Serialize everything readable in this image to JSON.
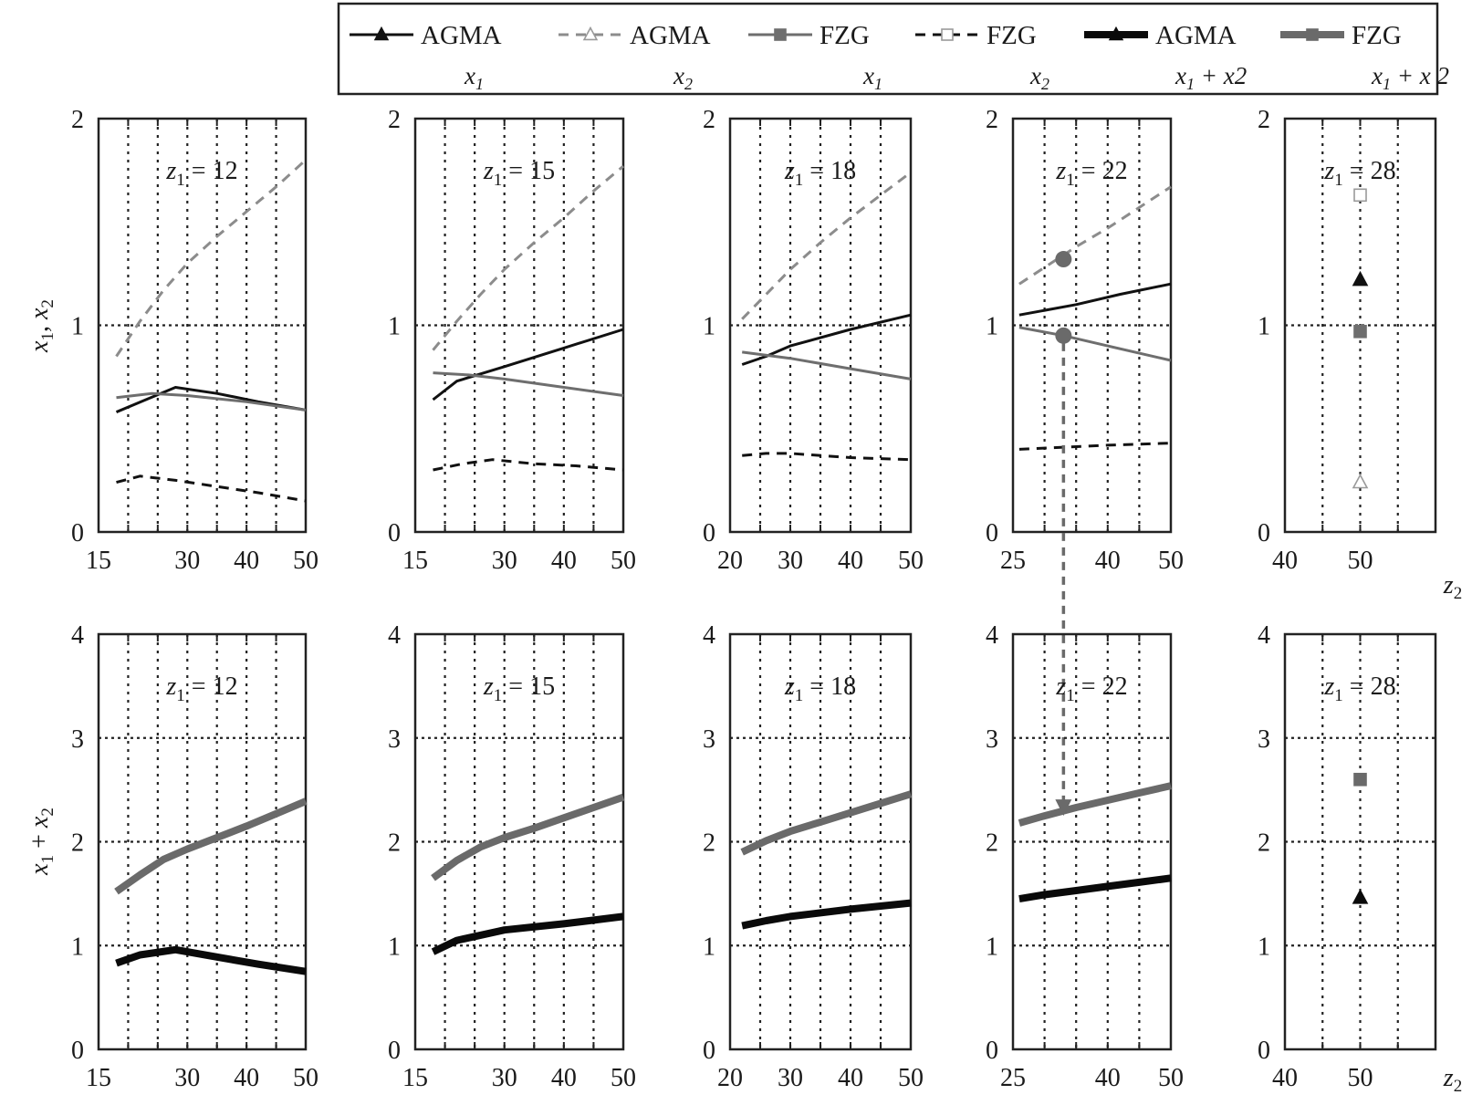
{
  "legend": {
    "entries": [
      {
        "name": "AGMA",
        "sub": "x",
        "subidx": "1",
        "subrest": "",
        "style": "thin-solid-dark",
        "marker": "triangle-filled"
      },
      {
        "name": "AGMA",
        "sub": "x",
        "subidx": "2",
        "subrest": "",
        "style": "thin-dashed-light",
        "marker": "triangle-open"
      },
      {
        "name": "FZG",
        "sub": "x",
        "subidx": "1",
        "subrest": "",
        "style": "thin-solid-gray",
        "marker": "square-filled"
      },
      {
        "name": "FZG",
        "sub": "x",
        "subidx": "2",
        "subrest": "",
        "style": "thin-dashed-light",
        "marker": "square-open"
      },
      {
        "name": "AGMA",
        "sub": "x",
        "subidx": "1",
        "subrest": "+ x2",
        "style": "thick-solid-black",
        "marker": "triangle-filled"
      },
      {
        "name": "FZG",
        "sub": "x",
        "subidx": "1",
        "subrest": "+ x 2",
        "style": "thick-solid-gray",
        "marker": "square-filled"
      }
    ]
  },
  "colors": {
    "agma_x1": "#111111",
    "agma_x2": "#111111",
    "fzg_x1": "#6e6e6e",
    "fzg_x2": "#8c8c8c",
    "agma_sum": "#0a0a0a",
    "fzg_sum": "#6a6a6a",
    "grid": "#222222",
    "arrow": "#6a6a6a"
  },
  "axes": {
    "top_ylabel": "x1, x2",
    "bottom_ylabel": "x1 + x2",
    "xlabel": "z2"
  },
  "chart_data": [
    {
      "type": "line",
      "row": "top",
      "annotation": "z1 = 12",
      "xlim": [
        15,
        50
      ],
      "ylim": [
        0,
        2
      ],
      "xticks": [
        15,
        30,
        40,
        50
      ],
      "yticks": [
        0,
        1,
        2
      ],
      "series": [
        {
          "key": "agma_x2",
          "points": [
            [
              18,
              0.85
            ],
            [
              22,
              1.02
            ],
            [
              26,
              1.17
            ],
            [
              30,
              1.3
            ],
            [
              35,
              1.43
            ],
            [
              40,
              1.55
            ],
            [
              45,
              1.67
            ],
            [
              50,
              1.8
            ]
          ]
        },
        {
          "key": "agma_x1",
          "points": [
            [
              18,
              0.58
            ],
            [
              23,
              0.64
            ],
            [
              28,
              0.7
            ],
            [
              35,
              0.67
            ],
            [
              42,
              0.63
            ],
            [
              50,
              0.59
            ]
          ]
        },
        {
          "key": "fzg_x1",
          "points": [
            [
              18,
              0.65
            ],
            [
              24,
              0.67
            ],
            [
              30,
              0.66
            ],
            [
              40,
              0.63
            ],
            [
              50,
              0.59
            ]
          ]
        },
        {
          "key": "fzg_x2",
          "points": [
            [
              18,
              0.24
            ],
            [
              22,
              0.27
            ],
            [
              28,
              0.25
            ],
            [
              35,
              0.22
            ],
            [
              42,
              0.19
            ],
            [
              50,
              0.15
            ]
          ]
        }
      ]
    },
    {
      "type": "line",
      "row": "top",
      "annotation": "z1 = 15",
      "xlim": [
        15,
        50
      ],
      "ylim": [
        0,
        2
      ],
      "xticks": [
        15,
        30,
        40,
        50
      ],
      "yticks": [
        0,
        1,
        2
      ],
      "series": [
        {
          "key": "agma_x2",
          "points": [
            [
              18,
              0.88
            ],
            [
              22,
              1.02
            ],
            [
              26,
              1.15
            ],
            [
              30,
              1.27
            ],
            [
              35,
              1.4
            ],
            [
              40,
              1.52
            ],
            [
              45,
              1.65
            ],
            [
              50,
              1.77
            ]
          ]
        },
        {
          "key": "agma_x1",
          "points": [
            [
              18,
              0.64
            ],
            [
              22,
              0.73
            ],
            [
              30,
              0.8
            ],
            [
              40,
              0.89
            ],
            [
              50,
              0.98
            ]
          ]
        },
        {
          "key": "fzg_x1",
          "points": [
            [
              18,
              0.77
            ],
            [
              24,
              0.76
            ],
            [
              30,
              0.74
            ],
            [
              40,
              0.7
            ],
            [
              50,
              0.66
            ]
          ]
        },
        {
          "key": "fzg_x2",
          "points": [
            [
              18,
              0.3
            ],
            [
              23,
              0.33
            ],
            [
              28,
              0.35
            ],
            [
              35,
              0.33
            ],
            [
              42,
              0.32
            ],
            [
              50,
              0.3
            ]
          ]
        }
      ]
    },
    {
      "type": "line",
      "row": "top",
      "annotation": "z1 = 18",
      "xlim": [
        20,
        50
      ],
      "ylim": [
        0,
        2
      ],
      "xticks": [
        20,
        30,
        40,
        50
      ],
      "yticks": [
        0,
        1,
        2
      ],
      "series": [
        {
          "key": "agma_x2",
          "points": [
            [
              22,
              1.03
            ],
            [
              26,
              1.15
            ],
            [
              30,
              1.27
            ],
            [
              35,
              1.4
            ],
            [
              40,
              1.52
            ],
            [
              45,
              1.63
            ],
            [
              50,
              1.74
            ]
          ]
        },
        {
          "key": "agma_x1",
          "points": [
            [
              22,
              0.81
            ],
            [
              26,
              0.85
            ],
            [
              30,
              0.9
            ],
            [
              40,
              0.98
            ],
            [
              50,
              1.05
            ]
          ]
        },
        {
          "key": "fzg_x1",
          "points": [
            [
              22,
              0.87
            ],
            [
              30,
              0.84
            ],
            [
              40,
              0.79
            ],
            [
              50,
              0.74
            ]
          ]
        },
        {
          "key": "fzg_x2",
          "points": [
            [
              22,
              0.37
            ],
            [
              26,
              0.38
            ],
            [
              30,
              0.38
            ],
            [
              40,
              0.36
            ],
            [
              50,
              0.35
            ]
          ]
        }
      ]
    },
    {
      "type": "line",
      "row": "top",
      "annotation": "z1 = 22",
      "xlim": [
        25,
        50
      ],
      "ylim": [
        0,
        2
      ],
      "xticks": [
        25,
        40,
        50
      ],
      "yticks": [
        0,
        1,
        2
      ],
      "series": [
        {
          "key": "agma_x2",
          "points": [
            [
              26,
              1.2
            ],
            [
              30,
              1.28
            ],
            [
              35,
              1.38
            ],
            [
              40,
              1.47
            ],
            [
              45,
              1.57
            ],
            [
              50,
              1.67
            ]
          ]
        },
        {
          "key": "agma_x1",
          "points": [
            [
              26,
              1.05
            ],
            [
              35,
              1.1
            ],
            [
              42,
              1.15
            ],
            [
              50,
              1.2
            ]
          ]
        },
        {
          "key": "fzg_x1",
          "points": [
            [
              26,
              0.99
            ],
            [
              33,
              0.95
            ],
            [
              40,
              0.9
            ],
            [
              50,
              0.83
            ]
          ]
        },
        {
          "key": "fzg_x2",
          "points": [
            [
              26,
              0.4
            ],
            [
              33,
              0.41
            ],
            [
              40,
              0.42
            ],
            [
              50,
              0.43
            ]
          ]
        }
      ],
      "highlights": [
        {
          "key": "agma_x2",
          "point": [
            33,
            1.32
          ]
        },
        {
          "key": "fzg_x1",
          "point": [
            33,
            0.95
          ]
        }
      ],
      "arrow_to_bottom": {
        "x": 33,
        "y_top": 0.95,
        "y_bottom": 2.25
      }
    },
    {
      "type": "scatter",
      "row": "top",
      "annotation": "z1 = 28",
      "xlim": [
        40,
        60
      ],
      "ylim": [
        0,
        2
      ],
      "xticks": [
        40,
        50
      ],
      "yticks": [
        0,
        1,
        2
      ],
      "series": [
        {
          "key": "fzg_x2",
          "marker": "square-open",
          "points": [
            [
              50,
              1.63
            ]
          ]
        },
        {
          "key": "agma_x1",
          "marker": "triangle-filled",
          "points": [
            [
              50,
              1.22
            ]
          ]
        },
        {
          "key": "fzg_x1",
          "marker": "square-filled",
          "points": [
            [
              50,
              0.97
            ]
          ]
        },
        {
          "key": "agma_x2",
          "marker": "triangle-open",
          "points": [
            [
              50,
              0.24
            ]
          ]
        }
      ]
    },
    {
      "type": "line",
      "row": "bottom",
      "annotation": "z1 = 12",
      "xlim": [
        15,
        50
      ],
      "ylim": [
        0,
        4
      ],
      "xticks": [
        15,
        30,
        40,
        50
      ],
      "yticks": [
        0,
        1,
        2,
        3,
        4
      ],
      "series": [
        {
          "key": "fzg_sum",
          "points": [
            [
              18,
              1.52
            ],
            [
              22,
              1.68
            ],
            [
              26,
              1.83
            ],
            [
              30,
              1.93
            ],
            [
              35,
              2.04
            ],
            [
              40,
              2.15
            ],
            [
              45,
              2.27
            ],
            [
              50,
              2.39
            ]
          ]
        },
        {
          "key": "agma_sum",
          "points": [
            [
              18,
              0.83
            ],
            [
              22,
              0.91
            ],
            [
              28,
              0.96
            ],
            [
              35,
              0.89
            ],
            [
              42,
              0.82
            ],
            [
              50,
              0.75
            ]
          ]
        }
      ]
    },
    {
      "type": "line",
      "row": "bottom",
      "annotation": "z1 = 15",
      "xlim": [
        15,
        50
      ],
      "ylim": [
        0,
        4
      ],
      "xticks": [
        15,
        30,
        40,
        50
      ],
      "yticks": [
        0,
        1,
        2,
        3,
        4
      ],
      "series": [
        {
          "key": "fzg_sum",
          "points": [
            [
              18,
              1.65
            ],
            [
              22,
              1.82
            ],
            [
              26,
              1.95
            ],
            [
              30,
              2.04
            ],
            [
              35,
              2.13
            ],
            [
              40,
              2.23
            ],
            [
              45,
              2.33
            ],
            [
              50,
              2.43
            ]
          ]
        },
        {
          "key": "agma_sum",
          "points": [
            [
              18,
              0.94
            ],
            [
              22,
              1.05
            ],
            [
              30,
              1.15
            ],
            [
              40,
              1.21
            ],
            [
              50,
              1.28
            ]
          ]
        }
      ]
    },
    {
      "type": "line",
      "row": "bottom",
      "annotation": "z1 = 18",
      "xlim": [
        20,
        50
      ],
      "ylim": [
        0,
        4
      ],
      "xticks": [
        20,
        30,
        40,
        50
      ],
      "yticks": [
        0,
        1,
        2,
        3,
        4
      ],
      "series": [
        {
          "key": "fzg_sum",
          "points": [
            [
              22,
              1.9
            ],
            [
              26,
              2.01
            ],
            [
              30,
              2.1
            ],
            [
              35,
              2.19
            ],
            [
              40,
              2.28
            ],
            [
              45,
              2.37
            ],
            [
              50,
              2.46
            ]
          ]
        },
        {
          "key": "agma_sum",
          "points": [
            [
              22,
              1.19
            ],
            [
              26,
              1.24
            ],
            [
              30,
              1.28
            ],
            [
              40,
              1.35
            ],
            [
              50,
              1.41
            ]
          ]
        }
      ]
    },
    {
      "type": "line",
      "row": "bottom",
      "annotation": "z1 = 22",
      "xlim": [
        25,
        50
      ],
      "ylim": [
        0,
        4
      ],
      "xticks": [
        25,
        40,
        50
      ],
      "yticks": [
        0,
        1,
        2,
        3,
        4
      ],
      "series": [
        {
          "key": "fzg_sum",
          "points": [
            [
              26,
              2.18
            ],
            [
              30,
              2.25
            ],
            [
              35,
              2.33
            ],
            [
              40,
              2.4
            ],
            [
              45,
              2.47
            ],
            [
              50,
              2.54
            ]
          ]
        },
        {
          "key": "agma_sum",
          "points": [
            [
              26,
              1.45
            ],
            [
              30,
              1.49
            ],
            [
              35,
              1.53
            ],
            [
              40,
              1.57
            ],
            [
              45,
              1.61
            ],
            [
              50,
              1.65
            ]
          ]
        }
      ]
    },
    {
      "type": "scatter",
      "row": "bottom",
      "annotation": "z1 = 28",
      "xlim": [
        40,
        60
      ],
      "ylim": [
        0,
        4
      ],
      "xticks": [
        40,
        50
      ],
      "yticks": [
        0,
        1,
        2,
        3,
        4
      ],
      "series": [
        {
          "key": "fzg_sum",
          "marker": "square-filled",
          "points": [
            [
              50,
              2.6
            ]
          ]
        },
        {
          "key": "agma_sum",
          "marker": "triangle-filled",
          "points": [
            [
              50,
              1.46
            ]
          ]
        }
      ]
    }
  ]
}
